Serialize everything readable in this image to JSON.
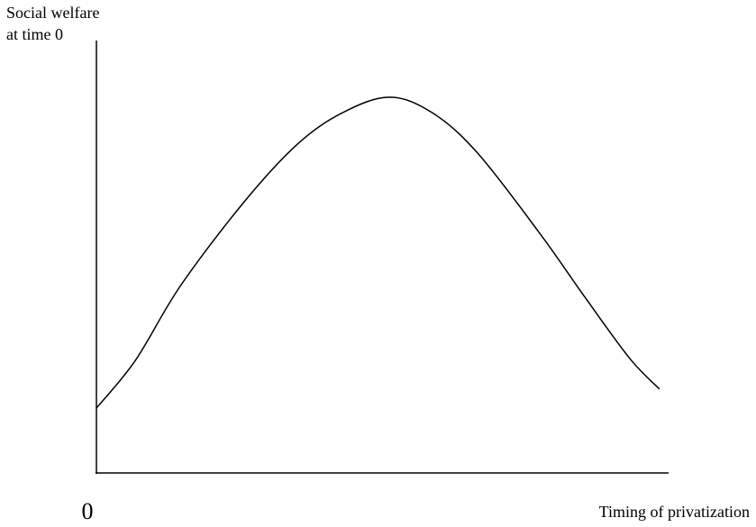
{
  "chart_data": {
    "type": "line",
    "ylabel": [
      "Social welfare",
      "at time 0"
    ],
    "xlabel": "Timing of privatization",
    "xlim": [
      0,
      100
    ],
    "ylim": [
      0,
      100
    ],
    "xticks": [
      0
    ],
    "series": [
      {
        "color": "#000000",
        "x": [
          0,
          6.8,
          14.6,
          25.7,
          35.1,
          43.0,
          51.2,
          58.7,
          66.6,
          77.6,
          85.4,
          93.2,
          98.4
        ],
        "values": [
          15.0,
          26.0,
          43.1,
          62.5,
          76.0,
          83.3,
          86.9,
          83.3,
          74.0,
          55.2,
          40.6,
          26.5,
          19.4
        ]
      }
    ]
  }
}
